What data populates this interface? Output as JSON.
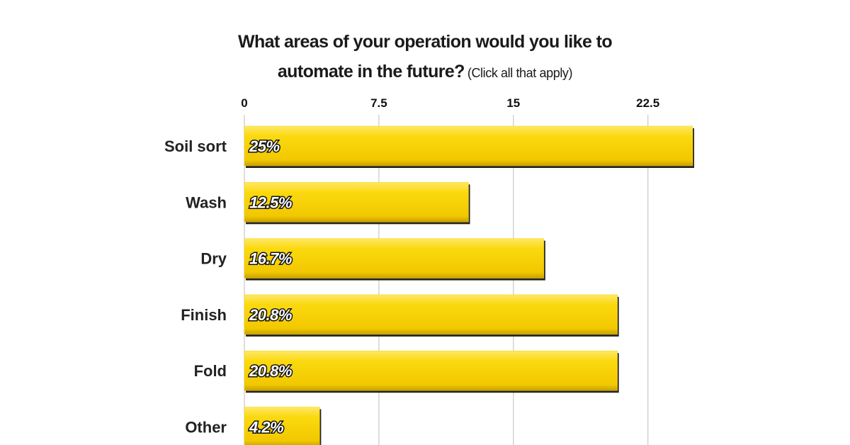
{
  "chart_data": {
    "type": "bar",
    "orientation": "horizontal",
    "title": "What areas of your operation would you like to automate in the future?",
    "subtitle": "(Click all that apply)",
    "categories": [
      "Soil sort",
      "Wash",
      "Dry",
      "Finish",
      "Fold",
      "Other"
    ],
    "values": [
      25,
      12.5,
      16.7,
      20.8,
      20.8,
      4.2
    ],
    "value_labels": [
      "25%",
      "12.5%",
      "16.7%",
      "20.8%",
      "20.8%",
      "4.2%"
    ],
    "color": "#f7d20a",
    "xlim": [
      0,
      25
    ],
    "xticks": [
      0,
      7.5,
      15,
      22.5
    ],
    "grid": true
  }
}
